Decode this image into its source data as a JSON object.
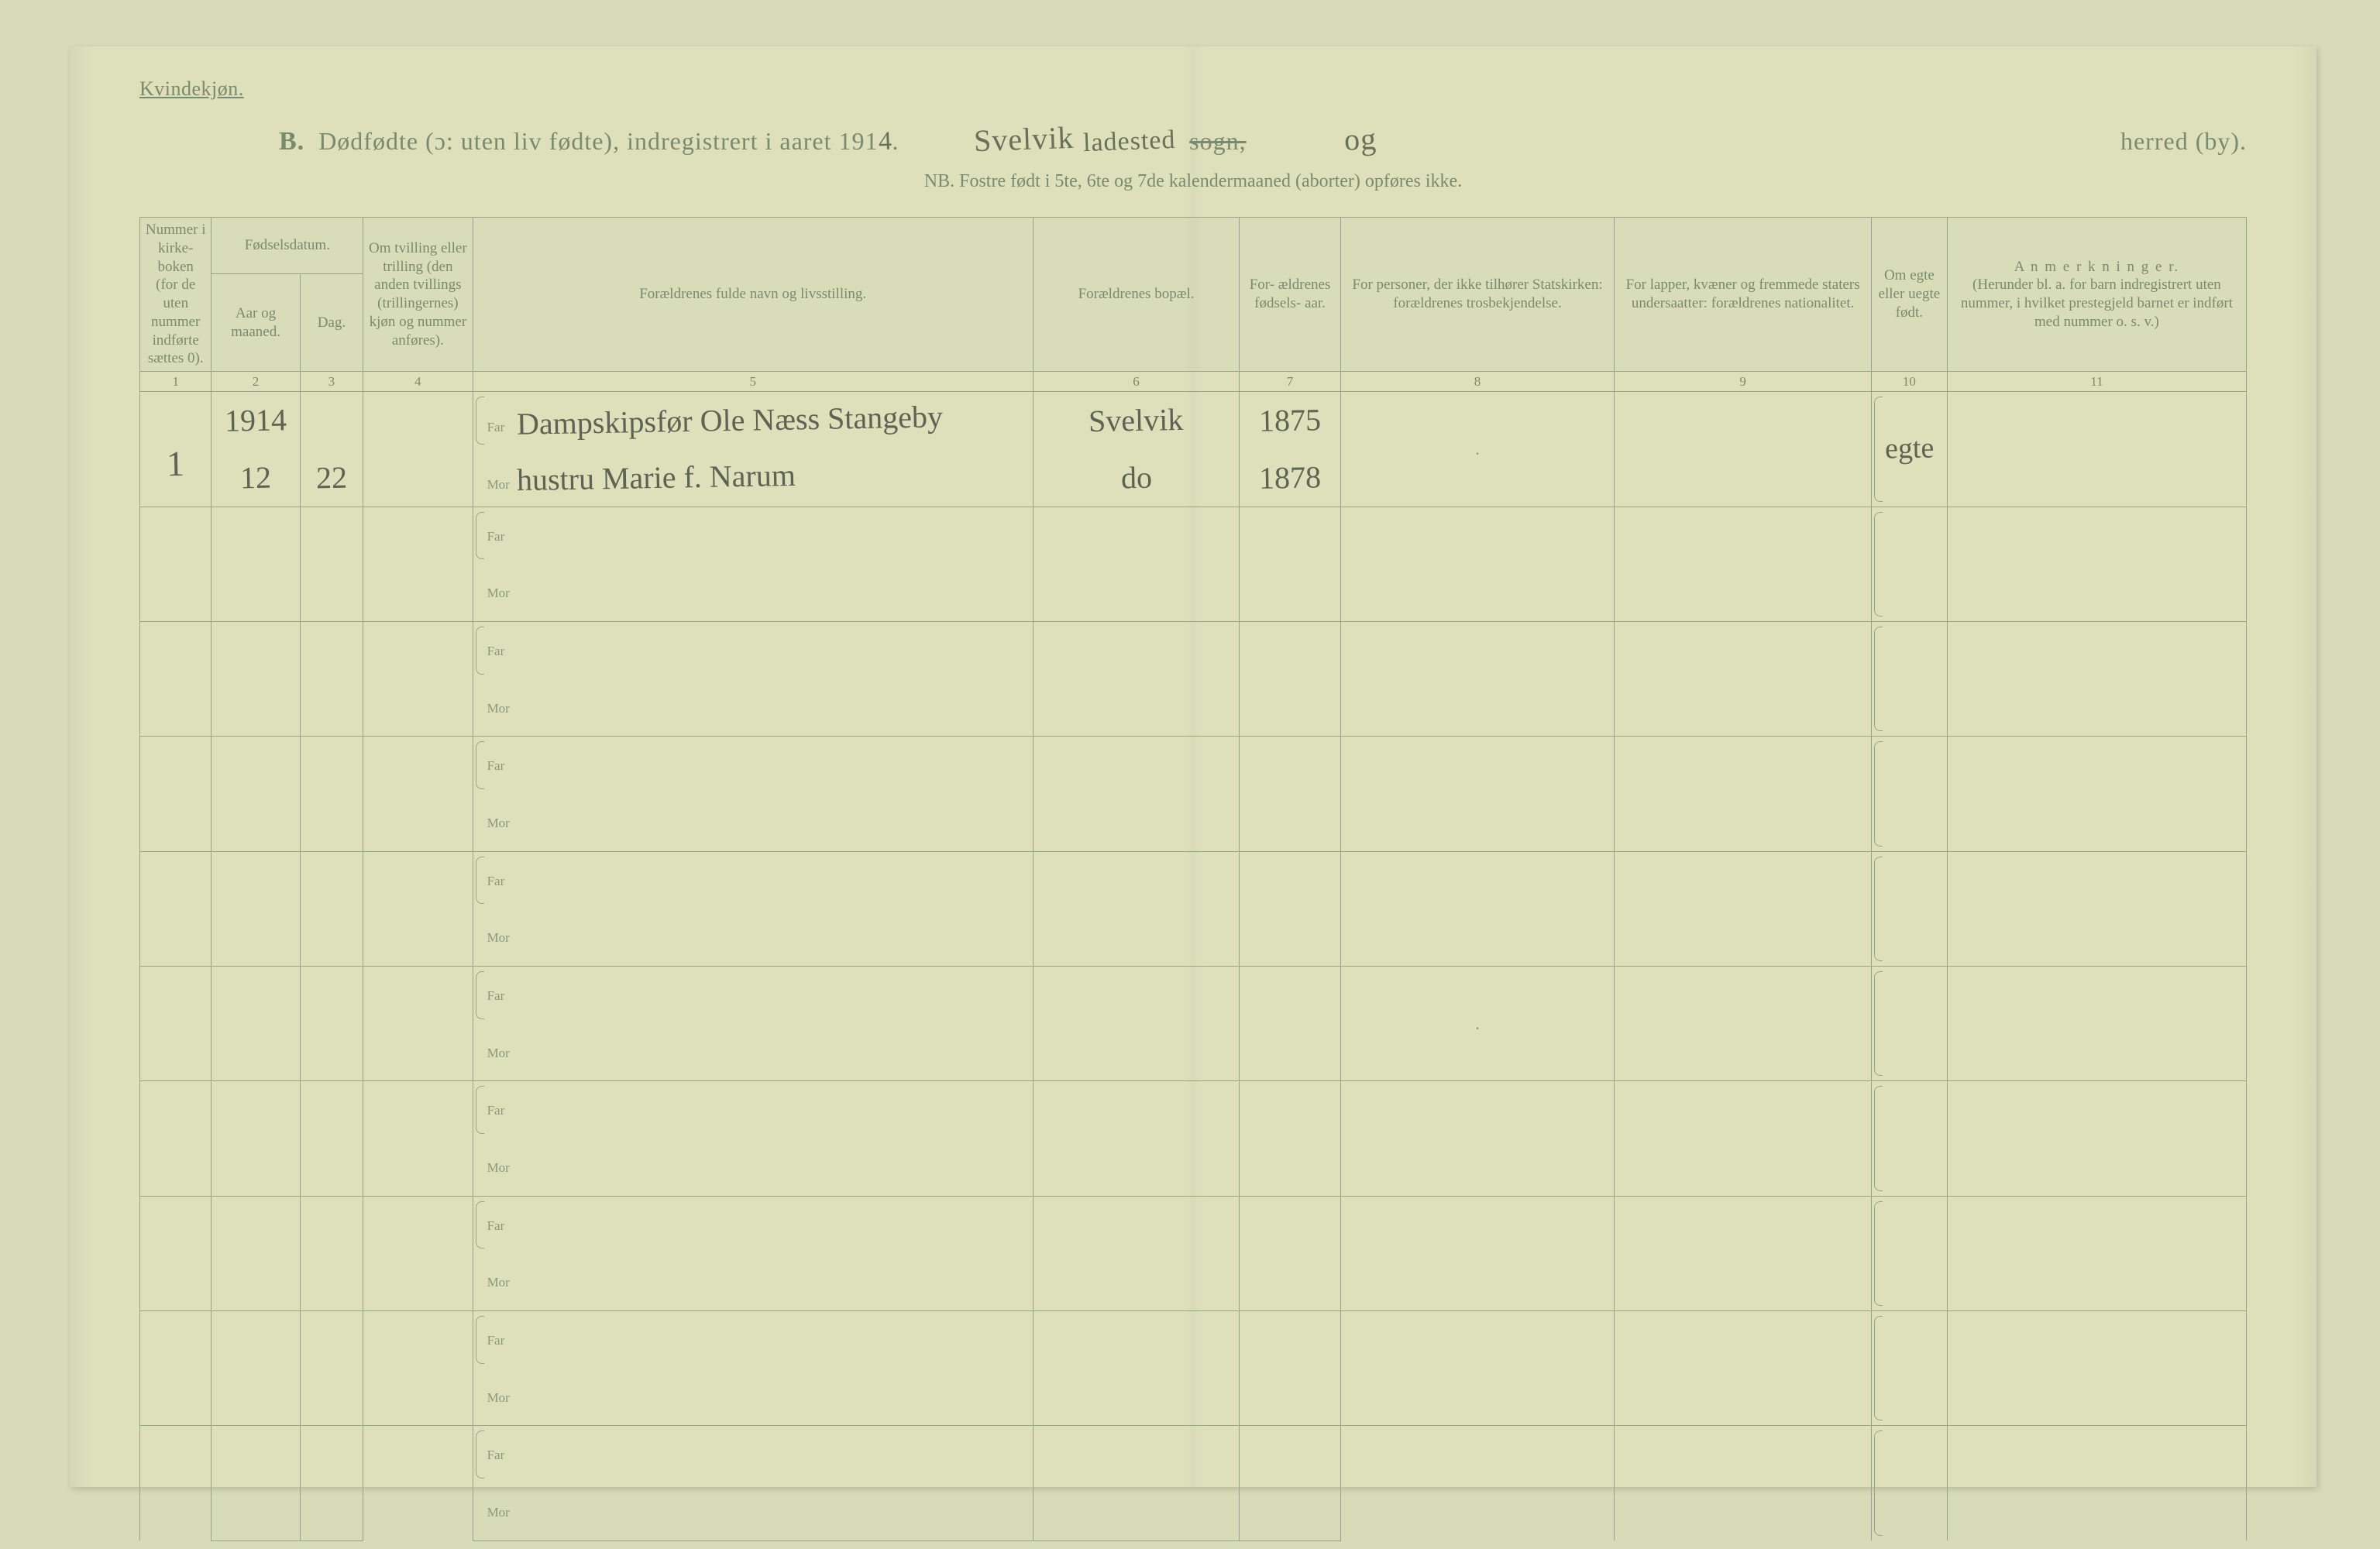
{
  "colors": {
    "page_bg": "#dde0bb",
    "outer_bg": "#d8dbb8",
    "ink": "#7a8a6e",
    "rule": "#98a488",
    "handwriting": "#5e6352"
  },
  "header": {
    "corner": "Kvindekjøn.",
    "lead": "B.",
    "title_printed_1": "Dødfødte (ɔ: uten liv fødte), indregistrert i aaret 191",
    "year_hw": "4",
    "title_printed_1_end": ".",
    "sogn_hw": "Svelvik",
    "ladested_hw": "ladested",
    "sogn_label": "sogn,",
    "og_hw": "og",
    "herred_label": "herred (by).",
    "nb": "NB.  Fostre født i 5te, 6te og 7de kalendermaaned (aborter) opføres ikke."
  },
  "columns": {
    "c1": "Nummer i kirke- boken (for de uten nummer indførte sættes 0).",
    "c2_group": "Fødselsdatum.",
    "c2a": "Aar og maaned.",
    "c2b": "Dag.",
    "c4": "Om tvilling eller trilling (den anden tvillings (trillingernes) kjøn og nummer anføres).",
    "c5": "Forældrenes fulde navn og livsstilling.",
    "c6": "Forældrenes bopæl.",
    "c7": "For- ældrenes fødsels- aar.",
    "c8": "For personer, der ikke tilhører Statskirken: forældrenes trosbekjendelse.",
    "c9": "For lapper, kvæner og fremmede staters undersaatter: forældrenes nationalitet.",
    "c10": "Om egte eller uegte født.",
    "c11_title": "A n m e r k n i n g e r.",
    "c11_sub": "(Herunder bl. a. for barn indregistrert uten nummer, i hvilket prestegjeld barnet er indført med nummer o. s. v.)",
    "nums": [
      "1",
      "2",
      "3",
      "4",
      "5",
      "6",
      "7",
      "8",
      "9",
      "10",
      "11"
    ]
  },
  "row_labels": {
    "far": "Far",
    "mor": "Mor"
  },
  "records": [
    {
      "num": "1",
      "year": "1914",
      "month": "12",
      "day": "22",
      "twin": "",
      "far_name": "Dampskipsfør Ole Næss Stangeby",
      "mor_name": "hustru Marie f. Narum",
      "far_bopael": "Svelvik",
      "mor_bopael": "do",
      "far_aar": "1875",
      "mor_aar": "1878",
      "c8": "",
      "c8_dot": ".",
      "c9": "",
      "egte": "egte",
      "anm": ""
    },
    {
      "far_name": "",
      "mor_name": ""
    },
    {
      "far_name": "",
      "mor_name": ""
    },
    {
      "far_name": "",
      "mor_name": ""
    },
    {
      "far_name": "",
      "mor_name": ""
    },
    {
      "far_name": "",
      "mor_name": "",
      "c8_dot": "."
    },
    {
      "far_name": "",
      "mor_name": ""
    },
    {
      "far_name": "",
      "mor_name": ""
    },
    {
      "far_name": "",
      "mor_name": ""
    },
    {
      "far_name": "",
      "mor_name": ""
    }
  ],
  "col_widths_pct": [
    3.4,
    4.2,
    3.0,
    5.2,
    26.6,
    9.8,
    4.8,
    13.0,
    12.2,
    3.6,
    14.2
  ]
}
